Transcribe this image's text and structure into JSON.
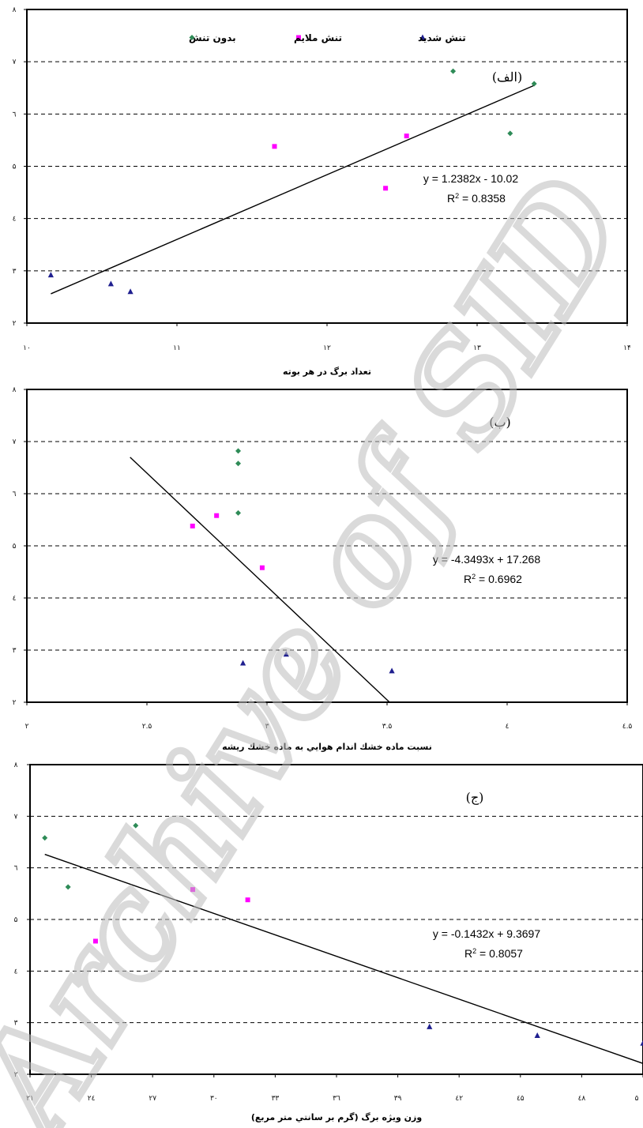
{
  "watermark": "Archive of SID",
  "chart_data": [
    {
      "type": "scatter",
      "panel_label": "(الف)",
      "xlabel": "تعداد برگ در هر بوته",
      "xlim": [
        10,
        14
      ],
      "ylim": [
        2,
        8
      ],
      "x_ticks": [
        "۱۰",
        "۱۱",
        "۱۲",
        "۱۳",
        "۱۴"
      ],
      "y_ticks": [
        "۲",
        "۳",
        "٤",
        "۵",
        "٦",
        "۷",
        "۸"
      ],
      "grid": "horizontal dashed",
      "legend": {
        "position": "top",
        "entries": [
          {
            "label": "بدون تنش",
            "color": "#2e8b57",
            "marker": "diamond"
          },
          {
            "label": "تنش ملايم",
            "color": "#ff00ff",
            "marker": "square"
          },
          {
            "label": "تنش شديد",
            "color": "#1f1f8f",
            "marker": "triangle"
          }
        ]
      },
      "series": [
        {
          "name": "بدون تنش",
          "color": "#2e8b57",
          "marker": "diamond",
          "points": [
            [
              12.84,
              6.82
            ],
            [
              13.22,
              5.63
            ],
            [
              13.38,
              6.58
            ]
          ]
        },
        {
          "name": "تنش ملايم",
          "color": "#ff00ff",
          "marker": "square",
          "points": [
            [
              11.65,
              5.38
            ],
            [
              12.39,
              4.58
            ],
            [
              12.53,
              5.58
            ]
          ]
        },
        {
          "name": "تنش شديد",
          "color": "#1f1f8f",
          "marker": "triangle",
          "points": [
            [
              10.16,
              2.92
            ],
            [
              10.56,
              2.75
            ],
            [
              10.69,
              2.6
            ]
          ]
        }
      ],
      "trendline": {
        "slope": 1.2382,
        "intercept": -10.02,
        "x_range": [
          10.16,
          13.38
        ]
      },
      "equation": "y = 1.2382x - 10.02",
      "r2_prefix": "R",
      "r2_value": " = 0.8358"
    },
    {
      "type": "scatter",
      "panel_label": "(ب)",
      "xlabel": "نسبت ماده خشك اندام هوايي به ماده خشك ريشه",
      "xlim": [
        2,
        4.5
      ],
      "ylim": [
        2,
        8
      ],
      "x_ticks": [
        "۲",
        "۲.۵",
        "۳",
        "۳.۵",
        "٤",
        "٤.۵"
      ],
      "y_ticks": [
        "۲",
        "۳",
        "٤",
        "۵",
        "٦",
        "۷",
        "۸"
      ],
      "grid": "horizontal dashed",
      "series": [
        {
          "name": "بدون تنش",
          "color": "#2e8b57",
          "marker": "diamond",
          "points": [
            [
              2.88,
              6.82
            ],
            [
              2.88,
              6.58
            ],
            [
              2.88,
              5.63
            ]
          ]
        },
        {
          "name": "تنش ملايم",
          "color": "#ff00ff",
          "marker": "square",
          "points": [
            [
              2.69,
              5.38
            ],
            [
              2.79,
              5.58
            ],
            [
              2.98,
              4.58
            ]
          ]
        },
        {
          "name": "تنش شديد",
          "color": "#1f1f8f",
          "marker": "triangle",
          "points": [
            [
              2.9,
              2.75
            ],
            [
              3.08,
              2.92
            ],
            [
              3.52,
              2.6
            ]
          ]
        }
      ],
      "trendline": {
        "slope": -4.3493,
        "intercept": 17.268,
        "x_range": [
          2.43,
          3.51
        ]
      },
      "equation": "y = -4.3493x + 17.268",
      "r2_prefix": "R",
      "r2_value": " = 0.6962"
    },
    {
      "type": "scatter",
      "panel_label": "(ج)",
      "xlabel": "وزن ويژه برگ (گرم بر سانتي متر مربع)",
      "xlim": [
        21,
        50
      ],
      "ylim": [
        2,
        8
      ],
      "x_ticks": [
        "۲۱",
        "۲٤",
        "۲۷",
        "۳۰",
        "۳۳",
        "۳٦",
        "۳۹",
        "٤۲",
        "٤۵",
        "٤۸",
        "۵"
      ],
      "y_ticks": [
        "۲",
        "۳",
        "٤",
        "۵",
        "٦",
        "۷",
        "۸"
      ],
      "grid": "horizontal dashed",
      "series": [
        {
          "name": "بدون تنش",
          "color": "#2e8b57",
          "marker": "diamond",
          "points": [
            [
              21.7,
              6.58
            ],
            [
              22.8,
              5.63
            ],
            [
              26.0,
              6.82
            ]
          ]
        },
        {
          "name": "تنش ملايم",
          "color": "#ff00ff",
          "marker": "square",
          "points": [
            [
              24.1,
              4.58
            ],
            [
              28.7,
              5.58
            ],
            [
              31.3,
              5.38
            ]
          ]
        },
        {
          "name": "تنش شديد",
          "color": "#1f1f8f",
          "marker": "triangle",
          "points": [
            [
              39.9,
              2.92
            ],
            [
              45.0,
              2.75
            ],
            [
              50.0,
              2.6
            ]
          ]
        }
      ],
      "trendline": {
        "slope": -0.1432,
        "intercept": 9.3697,
        "x_range": [
          21.7,
          50.0
        ]
      },
      "equation": "y = -0.1432x + 9.3697",
      "r2_prefix": "R",
      "r2_value": " = 0.8057"
    }
  ]
}
